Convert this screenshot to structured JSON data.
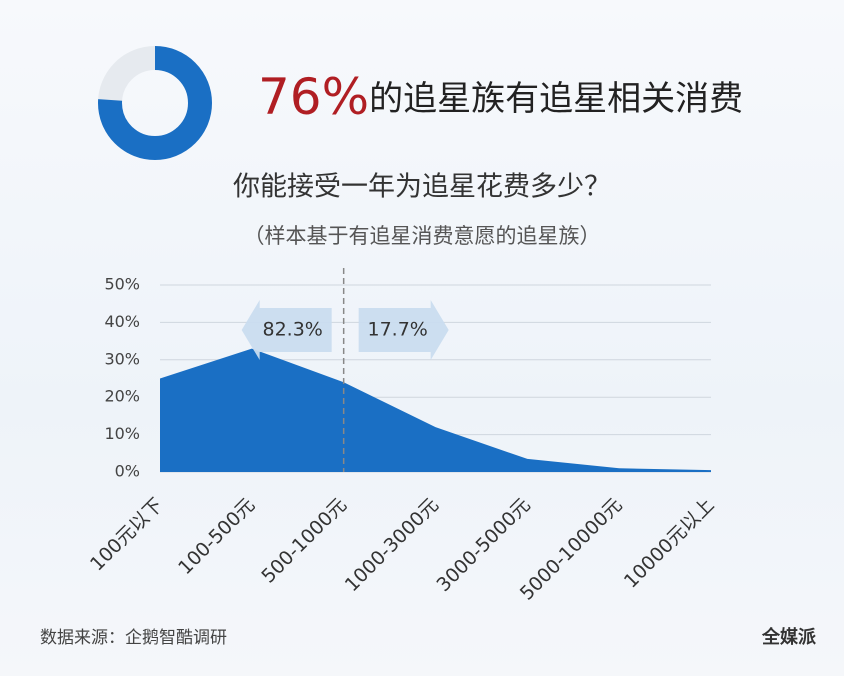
{
  "chart_data": [
    {
      "type": "donut",
      "value": 76,
      "value_label": "76%",
      "label": "的追星族有追星相关消费",
      "color": "#1a6fc4",
      "rest_color": "#e6eaef",
      "label_color": "#b01e23"
    },
    {
      "type": "area",
      "title": "你能接受一年为追星花费多少？",
      "subtitle": "（样本基于有追星消费意愿的追星族）",
      "categories": [
        "100元以下",
        "100-500元",
        "500-1000元",
        "1000-3000元",
        "3000-5000元",
        "5000-10000元",
        "10000元以上"
      ],
      "values": [
        25,
        33,
        24,
        12,
        3.5,
        1,
        0.5
      ],
      "color": "#1a6fc4",
      "ylim": [
        0,
        50
      ],
      "yticks": [
        {
          "value": 0,
          "label": "0%"
        },
        {
          "value": 10,
          "label": "10%"
        },
        {
          "value": 20,
          "label": "20%"
        },
        {
          "value": 30,
          "label": "30%"
        },
        {
          "value": 40,
          "label": "40%"
        },
        {
          "value": 50,
          "label": "50%"
        }
      ],
      "grid": true,
      "divider_at": 2,
      "annotations": [
        {
          "text": "82.3%",
          "direction": "left"
        },
        {
          "text": "17.7%",
          "direction": "right"
        }
      ]
    }
  ],
  "footer": {
    "source": "数据来源：企鹅智酷调研",
    "watermark": "全媒派"
  }
}
